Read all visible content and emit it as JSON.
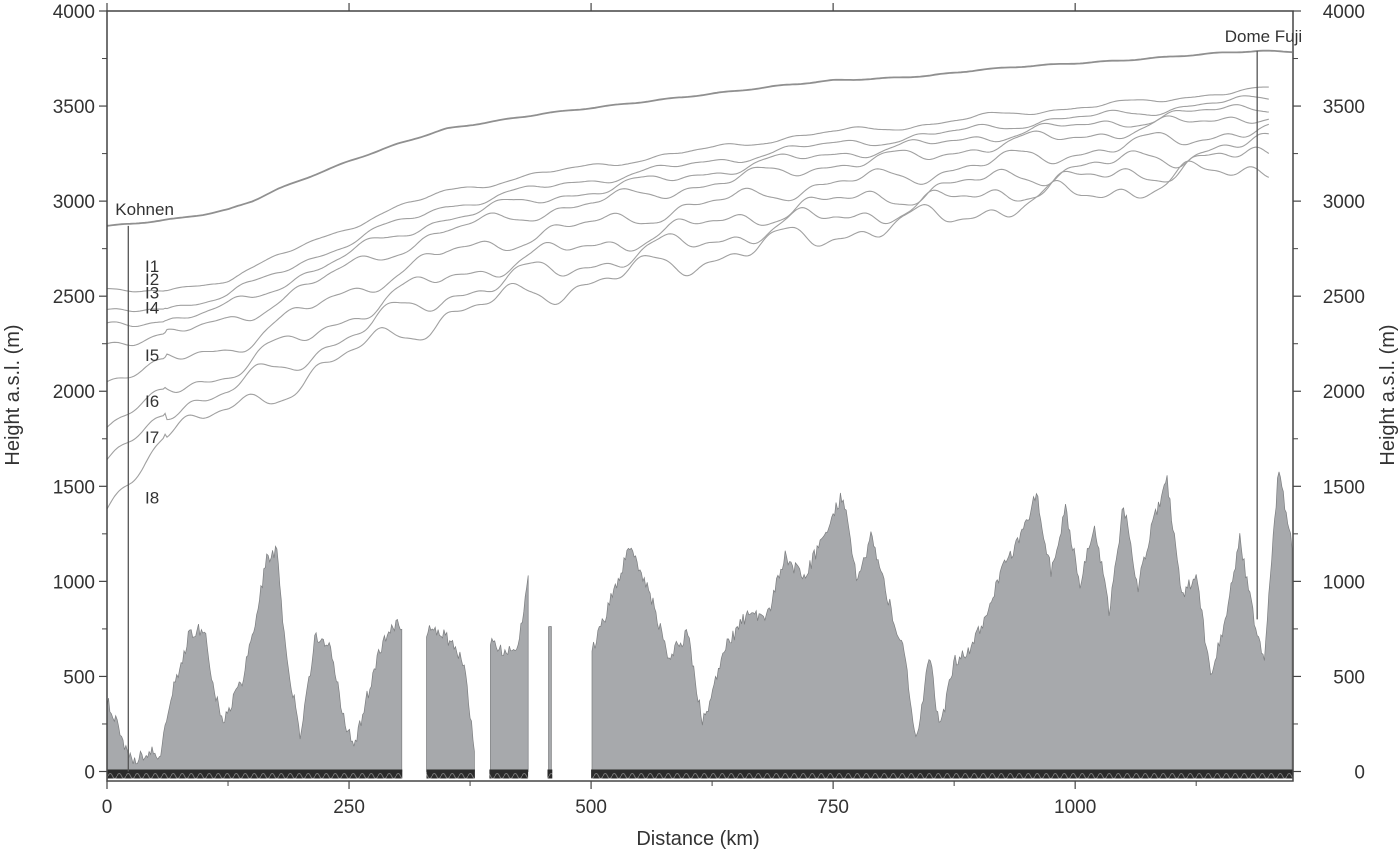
{
  "chart_data": {
    "type": "area",
    "xlabel": "Distance (km)",
    "ylabel": "Height a.s.l. (m)",
    "ylabel_right": "Height a.s.l. (m)",
    "xlim": [
      0,
      1225
    ],
    "ylim": [
      -50,
      4000
    ],
    "x_ticks": [
      0,
      250,
      500,
      750,
      1000
    ],
    "y_ticks": [
      0,
      500,
      1000,
      1500,
      2000,
      2500,
      3000,
      3500,
      4000
    ],
    "colors": {
      "bedrock_fill": "#a7a9ac",
      "surface": "#909090",
      "layers": "#a0a0a0",
      "axis": "#444444"
    },
    "surface": {
      "x": [
        0,
        25,
        50,
        75,
        100,
        125,
        150,
        175,
        200,
        250,
        300,
        350,
        400,
        450,
        500,
        550,
        600,
        650,
        700,
        750,
        800,
        850,
        900,
        950,
        1000,
        1050,
        1100,
        1150,
        1190,
        1225
      ],
      "y": [
        2870,
        2880,
        2895,
        2910,
        2930,
        2955,
        3000,
        3060,
        3110,
        3210,
        3300,
        3380,
        3420,
        3460,
        3490,
        3520,
        3550,
        3580,
        3610,
        3635,
        3645,
        3660,
        3690,
        3710,
        3725,
        3740,
        3760,
        3780,
        3790,
        3785
      ]
    },
    "bedrock": {
      "x": [
        0,
        10,
        18,
        25,
        35,
        45,
        55,
        62,
        70,
        85,
        100,
        110,
        120,
        140,
        150,
        165,
        175,
        185,
        200,
        215,
        230,
        245,
        255,
        270,
        285,
        300,
        305,
        330,
        350,
        370,
        380,
        395,
        410,
        425,
        435,
        455,
        456,
        460,
        500,
        520,
        540,
        560,
        580,
        600,
        615,
        640,
        665,
        680,
        700,
        720,
        740,
        760,
        775,
        790,
        805,
        825,
        835,
        850,
        860,
        875,
        890,
        905,
        925,
        945,
        960,
        975,
        990,
        1005,
        1020,
        1035,
        1050,
        1065,
        1080,
        1095,
        1110,
        1125,
        1140,
        1155,
        1170,
        1182,
        1195,
        1210,
        1225
      ],
      "y": [
        380,
        260,
        140,
        60,
        80,
        110,
        40,
        300,
        460,
        720,
        760,
        430,
        260,
        480,
        720,
        1110,
        1170,
        600,
        190,
        700,
        660,
        280,
        120,
        420,
        690,
        790,
        720,
        740,
        710,
        560,
        60,
        690,
        620,
        670,
        1020,
        760,
        760,
        770,
        610,
        900,
        1180,
        950,
        600,
        730,
        250,
        660,
        860,
        780,
        1130,
        1010,
        1240,
        1460,
        1000,
        1250,
        930,
        600,
        140,
        620,
        210,
        580,
        630,
        790,
        1070,
        1250,
        1460,
        1050,
        1380,
        990,
        1300,
        840,
        1400,
        970,
        1310,
        1540,
        910,
        1050,
        490,
        800,
        1230,
        870,
        580,
        1590,
        1150
      ]
    },
    "bedrock_gaps": [
      [
        305,
        330
      ],
      [
        380,
        395
      ],
      [
        435,
        455
      ],
      [
        460,
        500
      ]
    ],
    "layers": [
      {
        "label": "I1",
        "base": 2540,
        "offset": 380
      },
      {
        "label": "I2",
        "base": 2430,
        "offset": 470
      },
      {
        "label": "I3",
        "base": 2360,
        "offset": 540
      },
      {
        "label": "I4",
        "base": 2250,
        "offset": 620
      },
      {
        "label": "I5",
        "base": 2050,
        "offset": 760
      },
      {
        "label": "I6",
        "base": 1810,
        "offset": 900
      },
      {
        "label": "I7",
        "base": 1640,
        "offset": 1010
      },
      {
        "label": "I8",
        "base": 1380,
        "offset": 1130
      }
    ],
    "annotations": [
      {
        "label": "Kohnen",
        "x": 22,
        "y_bottom": 0,
        "y_top": 2870
      },
      {
        "label": "Dome Fuji",
        "x": 1188,
        "y_bottom": 800,
        "y_top": 3790
      }
    ]
  }
}
